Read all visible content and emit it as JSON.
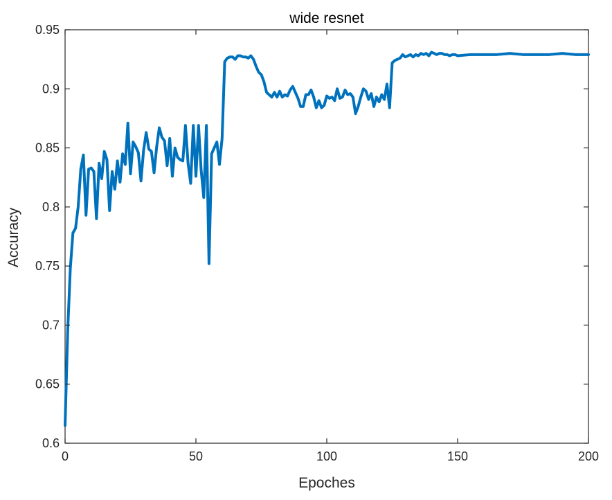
{
  "chart_data": {
    "type": "line",
    "title": "wide resnet",
    "xlabel": "Epoches",
    "ylabel": "Accuracy",
    "xlim": [
      0,
      200
    ],
    "ylim": [
      0.6,
      0.95
    ],
    "xticks": [
      0,
      50,
      100,
      150,
      200
    ],
    "xtick_labels": [
      "0",
      "50",
      "100",
      "150",
      "200"
    ],
    "yticks": [
      0.6,
      0.65,
      0.7,
      0.75,
      0.8,
      0.85,
      0.9,
      0.95
    ],
    "ytick_labels": [
      "0.6",
      "0.65",
      "0.7",
      "0.75",
      "0.8",
      "0.85",
      "0.9",
      "0.95"
    ],
    "grid": false,
    "legend": "none",
    "line_color": "#0072BD",
    "series": [
      {
        "x": [
          0,
          1,
          2,
          3,
          4,
          5,
          6,
          7,
          8,
          9,
          10,
          11,
          12,
          13,
          14,
          15,
          16,
          17,
          18,
          19,
          20,
          21,
          22,
          23,
          24,
          25,
          26,
          27,
          28,
          29,
          30,
          31,
          32,
          33,
          34,
          35,
          36,
          37,
          38,
          39,
          40,
          41,
          42,
          43,
          44,
          45,
          46,
          47,
          48,
          49,
          50,
          51,
          52,
          53,
          54,
          55,
          56,
          57,
          58,
          59,
          60,
          61,
          62,
          63,
          64,
          65,
          66,
          67,
          68,
          69,
          70,
          71,
          72,
          73,
          74,
          75,
          76,
          77,
          78,
          79,
          80,
          81,
          82,
          83,
          84,
          85,
          86,
          87,
          88,
          89,
          90,
          91,
          92,
          93,
          94,
          95,
          96,
          97,
          98,
          99,
          100,
          101,
          102,
          103,
          104,
          105,
          106,
          107,
          108,
          109,
          110,
          111,
          112,
          113,
          114,
          115,
          116,
          117,
          118,
          119,
          120,
          121,
          122,
          123,
          124,
          125,
          126,
          127,
          128,
          129,
          130,
          131,
          132,
          133,
          134,
          135,
          136,
          137,
          138,
          139,
          140,
          141,
          142,
          143,
          144,
          145,
          146,
          147,
          148,
          149,
          150,
          155,
          160,
          165,
          170,
          175,
          180,
          185,
          190,
          195,
          200
        ],
        "values": [
          0.615,
          0.695,
          0.748,
          0.778,
          0.782,
          0.8,
          0.832,
          0.844,
          0.793,
          0.832,
          0.833,
          0.83,
          0.79,
          0.837,
          0.824,
          0.847,
          0.84,
          0.797,
          0.83,
          0.815,
          0.839,
          0.821,
          0.845,
          0.836,
          0.871,
          0.828,
          0.855,
          0.851,
          0.846,
          0.822,
          0.848,
          0.863,
          0.849,
          0.847,
          0.829,
          0.851,
          0.867,
          0.859,
          0.856,
          0.835,
          0.858,
          0.826,
          0.85,
          0.842,
          0.84,
          0.839,
          0.869,
          0.837,
          0.82,
          0.869,
          0.826,
          0.869,
          0.831,
          0.808,
          0.869,
          0.752,
          0.845,
          0.85,
          0.855,
          0.836,
          0.858,
          0.923,
          0.926,
          0.927,
          0.927,
          0.925,
          0.928,
          0.928,
          0.927,
          0.927,
          0.926,
          0.928,
          0.925,
          0.919,
          0.914,
          0.912,
          0.906,
          0.897,
          0.895,
          0.893,
          0.897,
          0.893,
          0.898,
          0.893,
          0.895,
          0.894,
          0.899,
          0.902,
          0.897,
          0.892,
          0.885,
          0.885,
          0.895,
          0.895,
          0.899,
          0.893,
          0.884,
          0.89,
          0.884,
          0.886,
          0.894,
          0.892,
          0.893,
          0.89,
          0.9,
          0.892,
          0.893,
          0.899,
          0.895,
          0.896,
          0.893,
          0.879,
          0.885,
          0.893,
          0.9,
          0.898,
          0.891,
          0.896,
          0.885,
          0.893,
          0.889,
          0.895,
          0.891,
          0.904,
          0.884,
          0.922,
          0.924,
          0.925,
          0.926,
          0.929,
          0.927,
          0.928,
          0.929,
          0.927,
          0.929,
          0.928,
          0.93,
          0.929,
          0.93,
          0.928,
          0.931,
          0.93,
          0.929,
          0.93,
          0.93,
          0.929,
          0.929,
          0.928,
          0.929,
          0.929,
          0.928,
          0.929,
          0.929,
          0.929,
          0.93,
          0.929,
          0.929,
          0.929,
          0.93,
          0.929,
          0.929
        ]
      }
    ]
  }
}
